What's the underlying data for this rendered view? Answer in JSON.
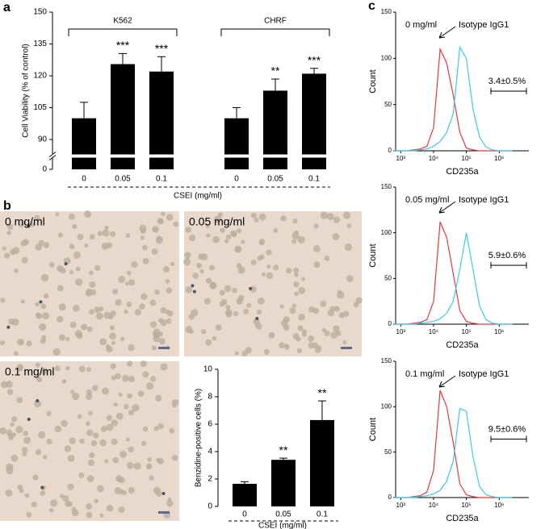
{
  "panel_labels": [
    "a",
    "b",
    "c"
  ],
  "images": [
    {
      "label": "0 mg/ml"
    },
    {
      "label": "0.05 mg/ml"
    },
    {
      "label": "0.1 mg/ml"
    }
  ],
  "chart_data": [
    {
      "type": "bar",
      "ylabel": "Cell Viability (% of control)",
      "xlabel": "CSEI (mg/ml)",
      "color": "#000000",
      "ylim": [
        0,
        150
      ],
      "yticks": [
        0,
        90,
        105,
        120,
        135,
        150
      ],
      "axis_break": true,
      "groups": [
        {
          "name": "K562",
          "categories": [
            "0",
            "0.05",
            "0.1"
          ],
          "values": [
            100,
            125.5,
            122
          ],
          "errors": [
            7.5,
            5,
            7
          ],
          "annotations": [
            null,
            "***",
            "***"
          ]
        },
        {
          "name": "CHRF",
          "categories": [
            "0",
            "0.05",
            "0.1"
          ],
          "values": [
            100,
            113,
            121
          ],
          "errors": [
            5,
            5.5,
            2.5
          ],
          "annotations": [
            null,
            "**",
            "***"
          ]
        }
      ]
    },
    {
      "type": "bar",
      "ylabel": "Benzidine-positive cells (%)",
      "xlabel": "CSEI (mg/ml)",
      "color": "#000000",
      "ylim": [
        0,
        10
      ],
      "yticks": [
        0,
        2,
        4,
        6,
        8,
        10
      ],
      "categories": [
        "0",
        "0.05",
        "0.1"
      ],
      "values": [
        1.65,
        3.4,
        6.3
      ],
      "errors": [
        0.15,
        0.12,
        1.4
      ],
      "annotations": [
        null,
        "**",
        "**"
      ]
    },
    {
      "type": "line",
      "label": "0 mg/ml",
      "gate_label": "3.4±0.5%",
      "ylabel": "Count",
      "xlabel": "CD235a",
      "xscale": "log",
      "xlim": [
        700,
        8000000
      ],
      "ylim": [
        0,
        150
      ],
      "yticks": [
        0,
        50,
        100,
        150
      ],
      "xticks": [
        {
          "value": 1000,
          "label": "10³"
        },
        {
          "value": 10000,
          "label": "10⁴"
        },
        {
          "value": 100000,
          "label": "10⁵"
        },
        {
          "value": 1000000,
          "label": "10⁶"
        }
      ],
      "x": [
        631,
        1000,
        1585,
        2512,
        3981,
        6310,
        10000,
        15849,
        25119,
        39811,
        63096,
        100000,
        158489,
        251189,
        398107,
        630957,
        1000000,
        1584893,
        2511886
      ],
      "series": [
        {
          "name": "Isotype IgG1",
          "color": "#e3383f",
          "values": [
            0,
            0,
            0,
            1,
            2,
            5,
            25,
            110,
            95,
            60,
            20,
            3,
            1,
            0,
            0,
            0,
            0,
            0,
            0
          ]
        },
        {
          "color": "#3cc8e6",
          "values": [
            0,
            0,
            0,
            0,
            1,
            2,
            5,
            10,
            20,
            40,
            112,
            100,
            45,
            15,
            4,
            1,
            0,
            0,
            0
          ]
        }
      ]
    },
    {
      "type": "line",
      "label": "0.05 mg/ml",
      "gate_label": "5.9±0.6%",
      "ylabel": "Count",
      "xlabel": "CD235a",
      "xscale": "log",
      "xlim": [
        700,
        8000000
      ],
      "ylim": [
        0,
        150
      ],
      "yticks": [
        0,
        50,
        100,
        150
      ],
      "xticks": [
        {
          "value": 1000,
          "label": "10³"
        },
        {
          "value": 10000,
          "label": "10⁴"
        },
        {
          "value": 100000,
          "label": "10⁵"
        },
        {
          "value": 1000000,
          "label": "10⁶"
        }
      ],
      "x": [
        631,
        1000,
        1585,
        2512,
        3981,
        6310,
        10000,
        15849,
        25119,
        39811,
        63096,
        100000,
        158489,
        251189,
        398107,
        630957,
        1000000,
        1584893,
        2511886
      ],
      "series": [
        {
          "name": "Isotype IgG1",
          "color": "#e3383f",
          "values": [
            0,
            0,
            0,
            1,
            2,
            5,
            25,
            112,
            95,
            55,
            15,
            3,
            1,
            0,
            0,
            0,
            0,
            0,
            0
          ]
        },
        {
          "color": "#3cc8e6",
          "values": [
            0,
            0,
            0,
            0,
            1,
            2,
            3,
            6,
            12,
            25,
            60,
            100,
            60,
            20,
            5,
            1,
            0,
            0,
            0
          ]
        }
      ]
    },
    {
      "type": "line",
      "label": "0.1 mg/ml",
      "gate_label": "9.5±0.6%",
      "ylabel": "Count",
      "xlabel": "CD235a",
      "xscale": "log",
      "xlim": [
        700,
        8000000
      ],
      "ylim": [
        0,
        150
      ],
      "yticks": [
        0,
        50,
        100,
        150
      ],
      "xticks": [
        {
          "value": 1000,
          "label": "10³"
        },
        {
          "value": 10000,
          "label": "10⁴"
        },
        {
          "value": 100000,
          "label": "10⁵"
        },
        {
          "value": 1000000,
          "label": "10⁶"
        }
      ],
      "x": [
        631,
        1000,
        1585,
        2512,
        3981,
        6310,
        10000,
        15849,
        25119,
        39811,
        63096,
        100000,
        158489,
        251189,
        398107,
        630957,
        1000000,
        1584893,
        2511886
      ],
      "series": [
        {
          "name": "Isotype IgG1",
          "color": "#e3383f",
          "values": [
            0,
            0,
            0,
            1,
            2,
            6,
            30,
            118,
            100,
            60,
            15,
            3,
            1,
            0,
            0,
            0,
            0,
            0,
            0
          ]
        },
        {
          "color": "#3cc8e6",
          "values": [
            0,
            0,
            0,
            0,
            1,
            2,
            4,
            8,
            18,
            40,
            98,
            95,
            45,
            12,
            3,
            1,
            0,
            0,
            0
          ]
        }
      ]
    }
  ]
}
